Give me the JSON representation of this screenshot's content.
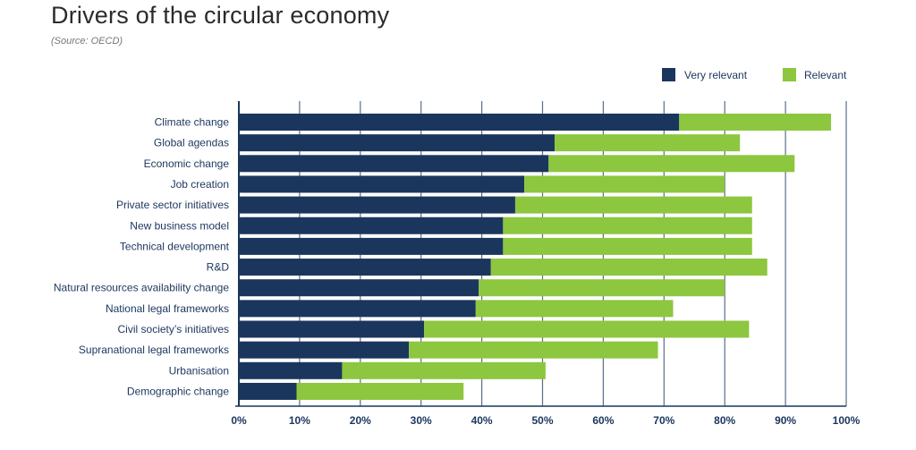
{
  "title": "Drivers of the circular economy",
  "source": "(Source: OECD)",
  "chart_data": {
    "type": "bar",
    "orientation": "horizontal",
    "stacked": true,
    "categories": [
      "Climate change",
      "Global agendas",
      "Economic change",
      "Job creation",
      "Private sector initiatives",
      "New business model",
      "Technical development",
      "R&D",
      "Natural resources availability change",
      "National legal frameworks",
      "Civil society’s initiatives",
      "Supranational legal frameworks",
      "Urbanisation",
      "Demographic change"
    ],
    "series": [
      {
        "name": "Very relevant",
        "color": "#1b365d",
        "values": [
          72.5,
          52,
          51,
          47,
          45.5,
          43.5,
          43.5,
          41.5,
          39.5,
          39,
          30.5,
          28,
          17,
          9.5
        ]
      },
      {
        "name": "Relevant",
        "color": "#8dc63f",
        "values": [
          25,
          30.5,
          40.5,
          33,
          39,
          41,
          41,
          45.5,
          40.5,
          32.5,
          53.5,
          41,
          33.5,
          27.5
        ]
      }
    ],
    "xlim": [
      0,
      100
    ],
    "xticks": [
      0,
      10,
      20,
      30,
      40,
      50,
      60,
      70,
      80,
      90,
      100
    ],
    "xtick_labels": [
      "0%",
      "10%",
      "20%",
      "30%",
      "40%",
      "50%",
      "60%",
      "70%",
      "80%",
      "90%",
      "100%"
    ],
    "grid": true,
    "legend_position": "top-right",
    "xlabel": "",
    "ylabel": ""
  }
}
